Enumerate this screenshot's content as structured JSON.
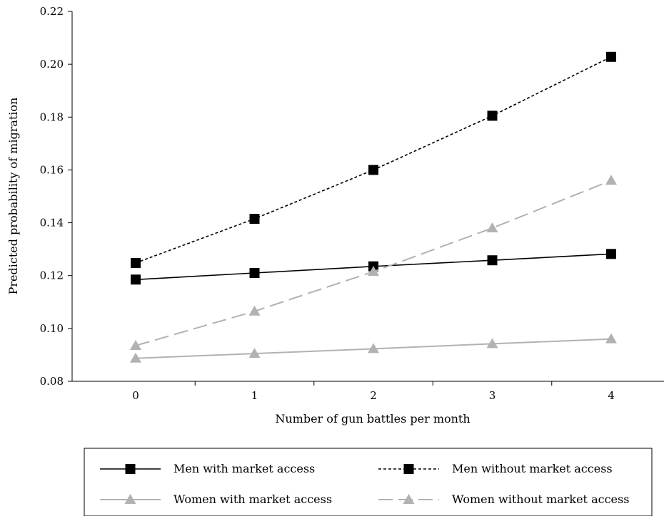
{
  "chart_data": {
    "type": "line",
    "xlabel": "Number of gun battles per month",
    "ylabel": "Predicted probability of migration",
    "x": [
      0,
      1,
      2,
      3,
      4
    ],
    "x_tick_labels": [
      "0",
      "1",
      "2",
      "3",
      "4"
    ],
    "y_tick_labels": [
      "0.08",
      "0.10",
      "0.12",
      "0.14",
      "0.16",
      "0.18",
      "0.20",
      "0.22"
    ],
    "ylim": [
      0.08,
      0.22
    ],
    "grid": false,
    "legend_position": "bottom",
    "series": [
      {
        "name": "Men with market access",
        "values": [
          0.1185,
          0.121,
          0.1235,
          0.1258,
          0.1282
        ],
        "color": "#000000",
        "dash": "solid",
        "marker": "square"
      },
      {
        "name": "Men without market access",
        "values": [
          0.1248,
          0.1415,
          0.16,
          0.1805,
          0.2028
        ],
        "color": "#000000",
        "dash": "dotted",
        "marker": "square"
      },
      {
        "name": "Women with market access",
        "values": [
          0.0887,
          0.0905,
          0.0923,
          0.0942,
          0.096
        ],
        "color": "#b2b2b2",
        "dash": "solid",
        "marker": "triangle"
      },
      {
        "name": "Women without market access",
        "values": [
          0.0935,
          0.1065,
          0.1215,
          0.138,
          0.156
        ],
        "color": "#b2b2b2",
        "dash": "dashed",
        "marker": "triangle"
      }
    ]
  }
}
